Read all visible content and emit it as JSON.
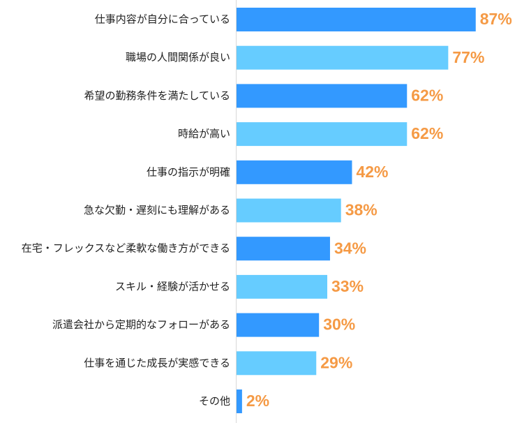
{
  "chart_data": {
    "type": "bar",
    "orientation": "horizontal",
    "categories": [
      "仕事内容が自分に合っている",
      "職場の人間関係が良い",
      "希望の勤務条件を満たしている",
      "時給が高い",
      "仕事の指示が明確",
      "急な欠勤・遅刻にも理解がある",
      "在宅・フレックスなど柔軟な働き方ができる",
      "スキル・経験が活かせる",
      "派遣会社から定期的なフォローがある",
      "仕事を通じた成長が実感できる",
      "その他"
    ],
    "values": [
      87,
      77,
      62,
      62,
      42,
      38,
      34,
      33,
      30,
      29,
      2
    ],
    "value_labels": [
      "87%",
      "77%",
      "62%",
      "62%",
      "42%",
      "38%",
      "34%",
      "33%",
      "30%",
      "29%",
      "2%"
    ],
    "colors": [
      "#3399ff",
      "#66ccff",
      "#3399ff",
      "#66ccff",
      "#3399ff",
      "#66ccff",
      "#3399ff",
      "#66ccff",
      "#3399ff",
      "#66ccff",
      "#3399ff"
    ],
    "label_color": "#f59a45"
  }
}
